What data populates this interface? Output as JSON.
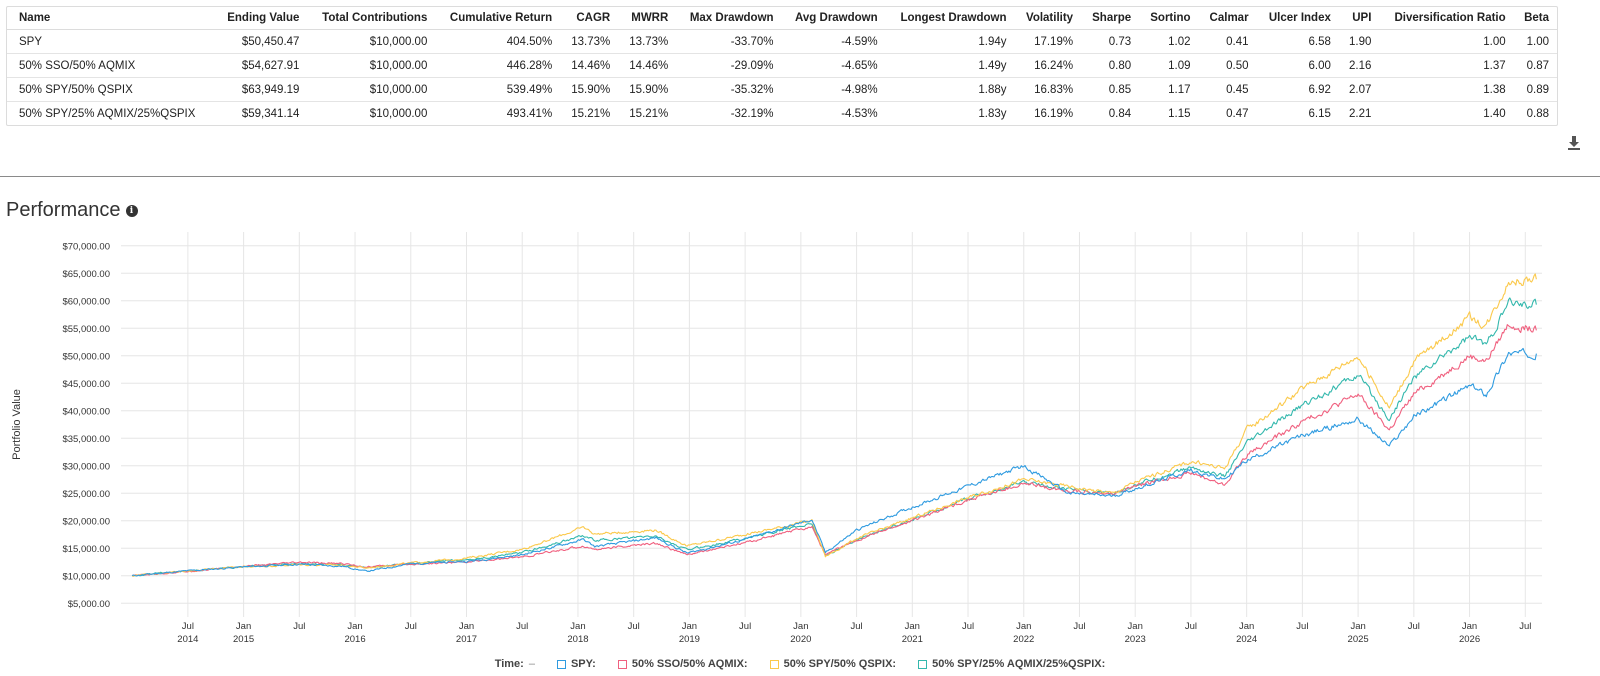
{
  "table": {
    "headers": [
      "Name",
      "Ending Value",
      "Total Contributions",
      "Cumulative Return",
      "CAGR",
      "MWRR",
      "Max Drawdown",
      "Avg Drawdown",
      "Longest Drawdown",
      "Volatility",
      "Sharpe",
      "Sortino",
      "Calmar",
      "Ulcer Index",
      "UPI",
      "Diversification Ratio",
      "Beta"
    ],
    "rows": [
      [
        "SPY",
        "$50,450.47",
        "$10,000.00",
        "404.50%",
        "13.73%",
        "13.73%",
        "-33.70%",
        "-4.59%",
        "1.94y",
        "17.19%",
        "0.73",
        "1.02",
        "0.41",
        "6.58",
        "1.90",
        "1.00",
        "1.00"
      ],
      [
        "50% SSO/50% AQMIX",
        "$54,627.91",
        "$10,000.00",
        "446.28%",
        "14.46%",
        "14.46%",
        "-29.09%",
        "-4.65%",
        "1.49y",
        "16.24%",
        "0.80",
        "1.09",
        "0.50",
        "6.00",
        "2.16",
        "1.37",
        "0.87"
      ],
      [
        "50% SPY/50% QSPIX",
        "$63,949.19",
        "$10,000.00",
        "539.49%",
        "15.90%",
        "15.90%",
        "-35.32%",
        "-4.98%",
        "1.88y",
        "16.83%",
        "0.85",
        "1.17",
        "0.45",
        "6.92",
        "2.07",
        "1.38",
        "0.89"
      ],
      [
        "50% SPY/25% AQMIX/25%QSPIX",
        "$59,341.14",
        "$10,000.00",
        "493.41%",
        "15.21%",
        "15.21%",
        "-32.19%",
        "-4.53%",
        "1.83y",
        "16.19%",
        "0.84",
        "1.15",
        "0.47",
        "6.15",
        "2.21",
        "1.40",
        "0.88"
      ]
    ]
  },
  "download_icon": "download-icon",
  "performance": {
    "title": "Performance",
    "info_icon": "info-icon",
    "info_glyph": "i"
  },
  "legend": {
    "time_label": "Time:",
    "time_value": "–",
    "items": [
      {
        "label": "SPY:",
        "color": "#2f9be0"
      },
      {
        "label": "50% SSO/50% AQMIX:",
        "color": "#f0607f"
      },
      {
        "label": "50% SPY/50% QSPIX:",
        "color": "#fbc94b"
      },
      {
        "label": "50% SPY/25% AQMIX/25%QSPIX:",
        "color": "#34b8ad"
      }
    ]
  },
  "chart_data": {
    "type": "line",
    "ylabel": "Portfolio Value",
    "ylim": [
      2500,
      72500
    ],
    "y_ticks": [
      "$5,000.00",
      "$10,000.00",
      "$15,000.00",
      "$20,000.00",
      "$25,000.00",
      "$30,000.00",
      "$35,000.00",
      "$40,000.00",
      "$45,000.00",
      "$50,000.00",
      "$55,000.00",
      "$60,000.00",
      "$65,000.00",
      "$70,000.00"
    ],
    "y_tick_values": [
      5000,
      10000,
      15000,
      20000,
      25000,
      30000,
      35000,
      40000,
      45000,
      50000,
      55000,
      60000,
      65000,
      70000
    ],
    "xlim": [
      2013.9,
      2026.65
    ],
    "x_ticks": [
      {
        "x": 2014.5,
        "label": "Jul",
        "year": "2014"
      },
      {
        "x": 2015.0,
        "label": "Jan",
        "year": "2015"
      },
      {
        "x": 2015.5,
        "label": "Jul",
        "year": ""
      },
      {
        "x": 2016.0,
        "label": "Jan",
        "year": "2016"
      },
      {
        "x": 2016.5,
        "label": "Jul",
        "year": ""
      },
      {
        "x": 2017.0,
        "label": "Jan",
        "year": "2017"
      },
      {
        "x": 2017.5,
        "label": "Jul",
        "year": ""
      },
      {
        "x": 2018.0,
        "label": "Jan",
        "year": "2018"
      },
      {
        "x": 2018.5,
        "label": "Jul",
        "year": ""
      },
      {
        "x": 2019.0,
        "label": "Jan",
        "year": "2019"
      },
      {
        "x": 2019.5,
        "label": "Jul",
        "year": ""
      },
      {
        "x": 2020.0,
        "label": "Jan",
        "year": "2020"
      },
      {
        "x": 2020.5,
        "label": "Jul",
        "year": ""
      },
      {
        "x": 2021.0,
        "label": "Jan",
        "year": "2021"
      },
      {
        "x": 2021.5,
        "label": "Jul",
        "year": ""
      },
      {
        "x": 2022.0,
        "label": "Jan",
        "year": "2022"
      },
      {
        "x": 2022.5,
        "label": "Jul",
        "year": ""
      },
      {
        "x": 2023.0,
        "label": "Jan",
        "year": "2023"
      },
      {
        "x": 2023.5,
        "label": "Jul",
        "year": ""
      },
      {
        "x": 2024.0,
        "label": "Jan",
        "year": "2024"
      },
      {
        "x": 2024.5,
        "label": "Jul",
        "year": ""
      },
      {
        "x": 2025.0,
        "label": "Jan",
        "year": "2025"
      },
      {
        "x": 2025.5,
        "label": "Jul",
        "year": ""
      },
      {
        "x": 2026.0,
        "label": "Jan",
        "year": "2026"
      },
      {
        "x": 2026.5,
        "label": "Jul",
        "year": ""
      }
    ],
    "grid": true,
    "series": [
      {
        "name": "SPY",
        "color": "#2f9be0",
        "points": [
          [
            2014.0,
            10000
          ],
          [
            2014.5,
            10900
          ],
          [
            2015.0,
            11600
          ],
          [
            2015.5,
            12100
          ],
          [
            2015.9,
            11700
          ],
          [
            2016.1,
            10800
          ],
          [
            2016.5,
            12200
          ],
          [
            2017.0,
            12600
          ],
          [
            2017.5,
            13800
          ],
          [
            2018.05,
            16600
          ],
          [
            2018.15,
            15300
          ],
          [
            2018.7,
            16900
          ],
          [
            2018.98,
            14100
          ],
          [
            2019.5,
            16600
          ],
          [
            2020.1,
            20200
          ],
          [
            2020.22,
            14200
          ],
          [
            2020.5,
            18300
          ],
          [
            2021.0,
            22500
          ],
          [
            2021.5,
            26300
          ],
          [
            2022.0,
            30000
          ],
          [
            2022.4,
            25000
          ],
          [
            2022.8,
            24500
          ],
          [
            2023.0,
            25800
          ],
          [
            2023.5,
            29200
          ],
          [
            2023.8,
            27500
          ],
          [
            2024.0,
            31000
          ],
          [
            2024.5,
            35500
          ],
          [
            2025.0,
            38500
          ],
          [
            2025.28,
            33500
          ],
          [
            2025.5,
            39000
          ],
          [
            2026.0,
            44500
          ],
          [
            2026.15,
            43000
          ],
          [
            2026.35,
            50500
          ],
          [
            2026.6,
            50400
          ]
        ]
      },
      {
        "name": "50% SSO/50% AQMIX",
        "color": "#f0607f",
        "points": [
          [
            2014.0,
            10000
          ],
          [
            2014.5,
            10800
          ],
          [
            2015.0,
            11700
          ],
          [
            2015.5,
            12400
          ],
          [
            2015.9,
            12200
          ],
          [
            2016.1,
            11600
          ],
          [
            2016.5,
            12100
          ],
          [
            2017.0,
            12500
          ],
          [
            2017.5,
            13400
          ],
          [
            2018.05,
            15400
          ],
          [
            2018.15,
            14800
          ],
          [
            2018.7,
            15900
          ],
          [
            2018.98,
            13800
          ],
          [
            2019.5,
            16000
          ],
          [
            2020.1,
            19000
          ],
          [
            2020.22,
            13800
          ],
          [
            2020.5,
            16500
          ],
          [
            2021.0,
            20000
          ],
          [
            2021.5,
            23800
          ],
          [
            2022.0,
            26700
          ],
          [
            2022.4,
            25500
          ],
          [
            2022.8,
            24800
          ],
          [
            2023.0,
            26300
          ],
          [
            2023.5,
            28700
          ],
          [
            2023.8,
            26500
          ],
          [
            2024.0,
            32000
          ],
          [
            2024.5,
            38000
          ],
          [
            2025.0,
            43000
          ],
          [
            2025.28,
            36500
          ],
          [
            2025.5,
            43000
          ],
          [
            2026.0,
            50000
          ],
          [
            2026.15,
            49000
          ],
          [
            2026.35,
            55800
          ],
          [
            2026.6,
            54600
          ]
        ]
      },
      {
        "name": "50% SPY/50% QSPIX",
        "color": "#fbc94b",
        "points": [
          [
            2014.0,
            10000
          ],
          [
            2014.5,
            10900
          ],
          [
            2015.0,
            11600
          ],
          [
            2015.5,
            12000
          ],
          [
            2015.9,
            11900
          ],
          [
            2016.1,
            11400
          ],
          [
            2016.5,
            12300
          ],
          [
            2017.0,
            13200
          ],
          [
            2017.5,
            14800
          ],
          [
            2018.05,
            18800
          ],
          [
            2018.15,
            17600
          ],
          [
            2018.7,
            18300
          ],
          [
            2018.98,
            15400
          ],
          [
            2019.5,
            17500
          ],
          [
            2020.1,
            20000
          ],
          [
            2020.22,
            13500
          ],
          [
            2020.5,
            16800
          ],
          [
            2021.0,
            20500
          ],
          [
            2021.5,
            24200
          ],
          [
            2022.0,
            27500
          ],
          [
            2022.4,
            26200
          ],
          [
            2022.8,
            25000
          ],
          [
            2023.0,
            27000
          ],
          [
            2023.5,
            30800
          ],
          [
            2023.8,
            29500
          ],
          [
            2024.0,
            36500
          ],
          [
            2024.5,
            44000
          ],
          [
            2025.0,
            50000
          ],
          [
            2025.28,
            40500
          ],
          [
            2025.5,
            49000
          ],
          [
            2026.0,
            57000
          ],
          [
            2026.15,
            55500
          ],
          [
            2026.35,
            63500
          ],
          [
            2026.6,
            63900
          ]
        ]
      },
      {
        "name": "50% SPY/25% AQMIX/25%QSPIX",
        "color": "#34b8ad",
        "points": [
          [
            2014.0,
            10000
          ],
          [
            2014.5,
            10850
          ],
          [
            2015.0,
            11650
          ],
          [
            2015.5,
            12150
          ],
          [
            2015.9,
            12000
          ],
          [
            2016.1,
            11500
          ],
          [
            2016.5,
            12200
          ],
          [
            2017.0,
            12900
          ],
          [
            2017.5,
            14200
          ],
          [
            2018.05,
            17300
          ],
          [
            2018.15,
            16400
          ],
          [
            2018.7,
            17200
          ],
          [
            2018.98,
            14700
          ],
          [
            2019.5,
            16800
          ],
          [
            2020.1,
            19500
          ],
          [
            2020.22,
            13600
          ],
          [
            2020.5,
            16600
          ],
          [
            2021.0,
            20200
          ],
          [
            2021.5,
            24000
          ],
          [
            2022.0,
            27000
          ],
          [
            2022.4,
            25800
          ],
          [
            2022.8,
            24900
          ],
          [
            2023.0,
            26600
          ],
          [
            2023.5,
            29700
          ],
          [
            2023.8,
            28000
          ],
          [
            2024.0,
            34000
          ],
          [
            2024.5,
            41000
          ],
          [
            2025.0,
            46500
          ],
          [
            2025.28,
            38500
          ],
          [
            2025.5,
            46000
          ],
          [
            2026.0,
            53500
          ],
          [
            2026.15,
            52000
          ],
          [
            2026.35,
            59500
          ],
          [
            2026.6,
            59300
          ]
        ]
      }
    ]
  }
}
